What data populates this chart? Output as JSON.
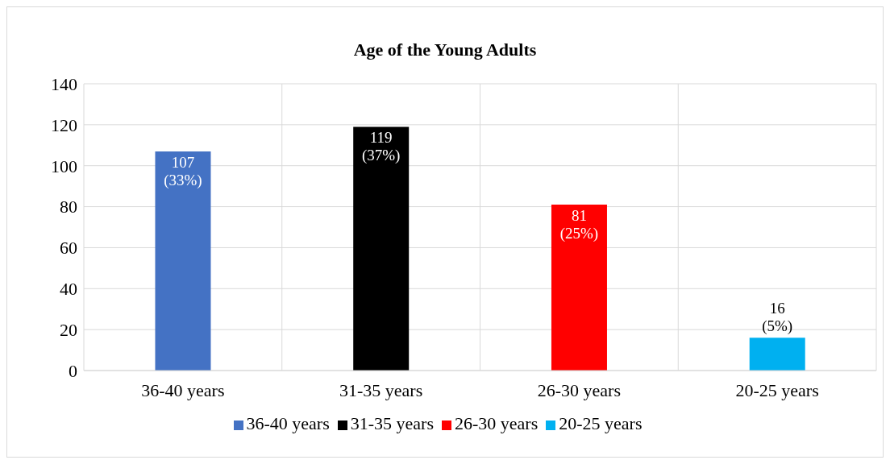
{
  "chart_data": {
    "type": "bar",
    "title": "Age of the Young Adults",
    "categories": [
      "36-40 years",
      "31-35 years",
      "26-30 years",
      "20-25 years"
    ],
    "series": [
      {
        "name": "36-40 years",
        "color": "#4472c4",
        "values": [
          107,
          null,
          null,
          null
        ],
        "value_labels": [
          "107\n(33%)",
          null,
          null,
          null
        ]
      },
      {
        "name": "31-35 years",
        "color": "#000000",
        "values": [
          null,
          119,
          null,
          null
        ],
        "value_labels": [
          null,
          "119\n(37%)",
          null,
          null
        ]
      },
      {
        "name": "26-30 years",
        "color": "#ff0000",
        "values": [
          null,
          null,
          81,
          null
        ],
        "value_labels": [
          null,
          null,
          "81\n(25%)",
          null
        ]
      },
      {
        "name": "20-25 years",
        "color": "#00b0f0",
        "values": [
          null,
          null,
          null,
          16
        ],
        "value_labels": [
          null,
          null,
          null,
          "16\n(5%)"
        ]
      }
    ],
    "stacked": true,
    "ylim": [
      0,
      140
    ],
    "yticks": [
      0,
      20,
      40,
      60,
      80,
      100,
      120,
      140
    ],
    "grid": true,
    "legend": "bottom"
  }
}
